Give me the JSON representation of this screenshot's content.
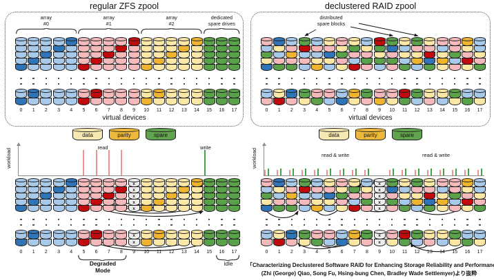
{
  "palette": {
    "b": "#a9c9e9",
    "B": "#2e74b6",
    "p": "#f3b9bb",
    "r": "#c00a0e",
    "y": "#fbe7a6",
    "o": "#eeb32f",
    "g": "#5ba04a",
    "x": "#ededed",
    "outline": "#1a1a1a",
    "axis": "#8a8a8a",
    "read_bar": "#ef9392",
    "write_bar": "#44a244",
    "arrow": "#141414"
  },
  "failed_mark": "x",
  "disk_numbers": [
    "0",
    "1",
    "2",
    "3",
    "4",
    "5",
    "6",
    "7",
    "8",
    "9",
    "10",
    "11",
    "12",
    "13",
    "14",
    "15",
    "16",
    "17"
  ],
  "legend": {
    "items": [
      {
        "label": "data",
        "color": "#f6e8b2"
      },
      {
        "label": "parity",
        "color": "#edb93c"
      },
      {
        "label": "spare",
        "color": "#62a34f"
      }
    ]
  },
  "panels": {
    "regular": {
      "title": "regular ZFS zpool",
      "footer": "virtual devices",
      "groups": [
        {
          "lines": [
            "array",
            "#0"
          ],
          "from": 0,
          "to": 4
        },
        {
          "lines": [
            "array",
            "#1"
          ],
          "from": 5,
          "to": 9
        },
        {
          "lines": [
            "array",
            "#2"
          ],
          "from": 10,
          "to": 14
        },
        {
          "lines": [
            "dedicated",
            "spare drives"
          ],
          "from": 15,
          "to": 17
        }
      ],
      "top": [
        "bbbbB",
        "bbbBb",
        "bbBbb",
        "bBbbb",
        "Bbbbb",
        "ppppr",
        "ppprp",
        "pprpp",
        "prppp",
        "rpppp",
        "yyyyo",
        "yyyoy",
        "yyoyy",
        "yoyyy",
        "oyyyy",
        "ggggg",
        "ggggg",
        "ggggg"
      ],
      "bottom": [
        "bB",
        "Bb",
        "bb",
        "bb",
        "bb",
        "pr",
        "rp",
        "pp",
        "pp",
        "pp",
        "yo",
        "oy",
        "yy",
        "yy",
        "yy",
        "gg",
        "gg",
        "gg"
      ]
    },
    "declustered": {
      "title": "declustered RAID zpool",
      "footer": "virtual devices",
      "callout": {
        "lines": [
          "distributed",
          "spare blocks"
        ],
        "targets": [
          3,
          10,
          12
        ]
      },
      "top": [
        "pbgyB",
        "Bybpg",
        "bpopg",
        "grbpb",
        "bpbyo",
        "ypByb",
        "pygpy",
        "ygpbr",
        "bypgp",
        "rgygb",
        "gBpgp",
        "ybybg",
        "gpyob",
        "yprBg",
        "pbyoy",
        "ppgbp",
        "oypry",
        "bbypg"
      ],
      "bottom": [
        "bp",
        "yr",
        "Bp",
        "gy",
        "pg",
        "pb",
        "bB",
        "oy",
        "gp",
        "po",
        "py",
        "rg",
        "gb",
        "yp",
        "yb",
        "gy",
        "bg",
        "by"
      ]
    },
    "regular_degraded": {
      "axis_label": "workload",
      "read_label": "read",
      "write_label": "write",
      "read_bars": [
        5,
        6,
        7,
        8
      ],
      "write_bars": [
        15
      ],
      "failed": 9,
      "hatched": [
        5,
        6,
        7,
        8
      ],
      "degraded_brace": {
        "lines": [
          "Degraded",
          "Mode"
        ],
        "from": 5,
        "to": 8
      },
      "idle_brace": {
        "label": "idle",
        "from": 16,
        "to": 17
      },
      "top": [
        "bbbbB",
        "bbbBb",
        "bbBbb",
        "bBbbb",
        "Bbbbb",
        "ppppr",
        "ppprp",
        "pprpp",
        "prppp",
        "xxxxx",
        "yyyyo",
        "yyyoy",
        "yyoyy",
        "yoyyy",
        "oyyyy",
        "ggggg",
        "ggggg",
        "ggggg"
      ],
      "bottom": [
        "bB",
        "Bb",
        "bb",
        "bb",
        "bb",
        "pr",
        "rp",
        "pp",
        "pp",
        "xx",
        "yo",
        "oy",
        "yy",
        "yy",
        "yy",
        "gg",
        "gg",
        "gg"
      ],
      "arcs": [
        {
          "f": [
            5,
            0
          ],
          "t": [
            15,
            0
          ],
          "dip": 46,
          "stack": "top"
        },
        {
          "f": [
            5,
            1
          ],
          "t": [
            15,
            1
          ],
          "dip": 37,
          "stack": "top"
        },
        {
          "f": [
            6,
            2
          ],
          "t": [
            15,
            2
          ],
          "dip": 28,
          "stack": "top"
        },
        {
          "f": [
            6,
            3
          ],
          "t": [
            15,
            3
          ],
          "dip": 19,
          "stack": "top"
        },
        {
          "f": [
            7,
            4
          ],
          "t": [
            15,
            4
          ],
          "dip": 11,
          "stack": "top"
        },
        {
          "f": [
            5,
            0
          ],
          "t": [
            15,
            0
          ],
          "dip": 26,
          "stack": "bot"
        },
        {
          "f": [
            6,
            1
          ],
          "t": [
            15,
            1
          ],
          "dip": 16,
          "stack": "bot"
        }
      ]
    },
    "declustered_degraded": {
      "axis_label": "workload",
      "rw_labels": [
        "read & write",
        "read & write"
      ],
      "bar_disks": [
        0,
        1,
        2,
        3,
        4,
        5,
        6,
        7,
        8,
        10,
        11,
        12,
        13,
        14,
        15,
        16,
        17
      ],
      "failed": 9,
      "top": [
        "pbgyB",
        "Bybpg",
        "bpopg",
        "grbpb",
        "bpbyo",
        "ypByb",
        "pygpy",
        "ygpbr",
        "bypgp",
        "xxxxx",
        "gBpgp",
        "ybybg",
        "gpyob",
        "yprBg",
        "pbyoy",
        "ppgbp",
        "oypry",
        "bbypg"
      ],
      "bottom": [
        "bp",
        "yr",
        "Bp",
        "gy",
        "pg",
        "pb",
        "bB",
        "oy",
        "gp",
        "xx",
        "py",
        "rg",
        "gb",
        "yp",
        "yb",
        "gy",
        "bg",
        "by"
      ],
      "arcs": [
        {
          "f": [
            0,
            4
          ],
          "t": [
            3,
            4
          ],
          "dip": 14,
          "stack": "top"
        },
        {
          "f": [
            2,
            2
          ],
          "t": [
            8,
            0
          ],
          "dip": 30,
          "stack": "top"
        },
        {
          "f": [
            4,
            4
          ],
          "t": [
            8,
            0
          ],
          "dip": 22,
          "stack": "top"
        },
        {
          "f": [
            6,
            1
          ],
          "t": [
            3,
            0
          ],
          "dip": -12,
          "stack": "top"
        },
        {
          "f": [
            7,
            3
          ],
          "t": [
            11,
            3
          ],
          "dip": 16,
          "stack": "top"
        },
        {
          "f": [
            10,
            0
          ],
          "t": [
            8,
            0
          ],
          "dip": -9,
          "stack": "top"
        },
        {
          "f": [
            13,
            1
          ],
          "t": [
            8,
            0
          ],
          "dip": -14,
          "stack": "top"
        },
        {
          "f": [
            14,
            2
          ],
          "t": [
            11,
            3
          ],
          "dip": 14,
          "stack": "top"
        },
        {
          "f": [
            16,
            3
          ],
          "t": [
            11,
            3
          ],
          "dip": 22,
          "stack": "top"
        },
        {
          "f": [
            17,
            0
          ],
          "t": [
            14,
            1
          ],
          "dip": 10,
          "stack": "top"
        },
        {
          "f": [
            4,
            1
          ],
          "t": [
            8,
            0
          ],
          "dip": 14,
          "stack": "bot"
        },
        {
          "f": [
            6,
            1
          ],
          "t": [
            2,
            1
          ],
          "dip": 12,
          "stack": "bot"
        },
        {
          "f": [
            13,
            1
          ],
          "t": [
            11,
            1
          ],
          "dip": 10,
          "stack": "bot"
        },
        {
          "f": [
            16,
            1
          ],
          "t": [
            11,
            1
          ],
          "dip": 18,
          "stack": "bot"
        }
      ]
    }
  },
  "citation": {
    "line1": "「Characterizing Declustered Software RAID for Enhancing Storage Reliability and Performance」",
    "line2": "(Zhi (George) Qiao, Song Fu, Hsing-bung Chen, Bradley Wade Settlemyer)より抜粋"
  }
}
